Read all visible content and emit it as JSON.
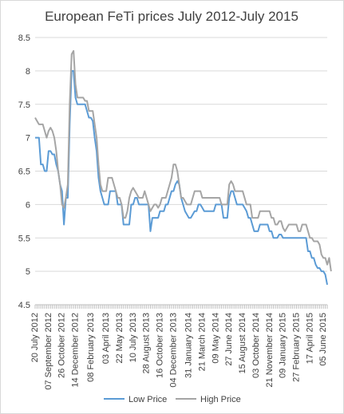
{
  "chart_data": {
    "type": "line",
    "title": "European FeTi prices July 2012-July 2015",
    "xlabel": "",
    "ylabel": "",
    "ylim": [
      4.5,
      8.5
    ],
    "yticks": [
      "4.5",
      "5",
      "5.5",
      "6",
      "6.5",
      "7",
      "7.5",
      "8",
      "8.5"
    ],
    "grid": true,
    "legend": "bottom",
    "x_tick_labels": [
      "20 July 2012",
      "07 September 2012",
      "26 October 2012",
      "14 December 2012",
      "08 February 2013",
      "03 April 2013",
      "22 May 2013",
      "10 July 2013",
      "28 August 2013",
      "16 October 2013",
      "04 December 2013",
      "31 January 2014",
      "21 March 2014",
      "09 May 2014",
      "27 June 2014",
      "15 August 2014",
      "03 October 2014",
      "21 November 2014",
      "09 January 2015",
      "27 February 2015",
      "17 April 2015",
      "05 June 2015"
    ],
    "x_week_index": [
      0,
      7,
      14,
      21,
      29,
      37,
      44,
      51,
      58,
      65,
      72,
      80,
      87,
      94,
      101,
      108,
      115,
      122,
      129,
      136,
      143,
      150
    ],
    "series": [
      {
        "name": "Low Price",
        "color": "#5B9BD5",
        "values": [
          7.0,
          7.0,
          7.0,
          6.6,
          6.6,
          6.5,
          6.5,
          6.8,
          6.8,
          6.75,
          6.75,
          6.6,
          6.5,
          6.3,
          6.2,
          5.7,
          6.1,
          6.1,
          7.2,
          8.0,
          8.0,
          7.6,
          7.5,
          7.5,
          7.5,
          7.5,
          7.5,
          7.4,
          7.3,
          7.3,
          7.25,
          7.0,
          6.8,
          6.4,
          6.2,
          6.1,
          6.0,
          6.0,
          6.0,
          6.2,
          6.2,
          6.2,
          6.2,
          6.0,
          6.0,
          6.0,
          5.7,
          5.7,
          5.7,
          5.7,
          6.0,
          6.0,
          6.1,
          6.1,
          6.0,
          6.0,
          6.0,
          6.0,
          6.0,
          6.0,
          5.6,
          5.8,
          5.8,
          5.8,
          5.8,
          5.9,
          5.9,
          5.9,
          6.0,
          6.0,
          6.1,
          6.2,
          6.2,
          6.3,
          6.35,
          6.3,
          6.1,
          6.0,
          5.9,
          5.85,
          5.8,
          5.8,
          5.85,
          5.9,
          5.9,
          6.0,
          6.0,
          5.95,
          5.9,
          5.9,
          5.9,
          5.9,
          5.9,
          5.9,
          6.0,
          6.0,
          6.0,
          6.0,
          5.8,
          5.8,
          5.8,
          6.1,
          6.2,
          6.2,
          6.1,
          6.0,
          6.0,
          6.0,
          6.0,
          5.95,
          5.9,
          5.8,
          5.8,
          5.7,
          5.6,
          5.6,
          5.6,
          5.7,
          5.7,
          5.7,
          5.7,
          5.7,
          5.6,
          5.6,
          5.5,
          5.5,
          5.5,
          5.55,
          5.55,
          5.5,
          5.5,
          5.5,
          5.5,
          5.5,
          5.5,
          5.5,
          5.5,
          5.5,
          5.5,
          5.5,
          5.5,
          5.5,
          5.3,
          5.3,
          5.2,
          5.2,
          5.1,
          5.05,
          5.05,
          5.0,
          5.0,
          4.95,
          4.8
        ]
      },
      {
        "name": "High Price",
        "color": "#A5A5A5",
        "values": [
          7.3,
          7.25,
          7.2,
          7.2,
          7.2,
          7.1,
          7.0,
          7.1,
          7.15,
          7.1,
          7.0,
          6.8,
          6.5,
          6.3,
          6.0,
          5.95,
          6.1,
          6.3,
          7.5,
          8.25,
          8.3,
          7.8,
          7.6,
          7.6,
          7.6,
          7.6,
          7.55,
          7.55,
          7.4,
          7.4,
          7.4,
          7.2,
          7.0,
          6.6,
          6.3,
          6.2,
          6.2,
          6.2,
          6.4,
          6.4,
          6.4,
          6.3,
          6.2,
          6.1,
          6.1,
          6.0,
          5.8,
          5.8,
          5.9,
          6.1,
          6.2,
          6.25,
          6.2,
          6.15,
          6.1,
          6.1,
          6.1,
          6.2,
          6.1,
          6.0,
          5.9,
          5.95,
          6.0,
          6.0,
          5.95,
          6.0,
          6.1,
          6.1,
          6.1,
          6.2,
          6.3,
          6.4,
          6.6,
          6.6,
          6.5,
          6.3,
          6.1,
          6.1,
          6.05,
          6.0,
          6.0,
          6.0,
          6.1,
          6.2,
          6.2,
          6.2,
          6.2,
          6.1,
          6.1,
          6.1,
          6.1,
          6.1,
          6.1,
          6.1,
          6.1,
          6.1,
          6.1,
          6.0,
          6.0,
          6.0,
          6.0,
          6.3,
          6.35,
          6.3,
          6.2,
          6.2,
          6.2,
          6.2,
          6.2,
          6.1,
          6.0,
          6.0,
          6.0,
          5.8,
          5.8,
          5.8,
          5.8,
          5.9,
          5.9,
          5.9,
          5.9,
          5.9,
          5.9,
          5.8,
          5.8,
          5.7,
          5.7,
          5.75,
          5.75,
          5.65,
          5.6,
          5.65,
          5.7,
          5.7,
          5.7,
          5.7,
          5.7,
          5.6,
          5.6,
          5.7,
          5.7,
          5.7,
          5.6,
          5.5,
          5.5,
          5.45,
          5.45,
          5.45,
          5.4,
          5.25,
          5.2,
          5.2,
          5.1,
          5.2,
          5.0
        ]
      }
    ]
  }
}
